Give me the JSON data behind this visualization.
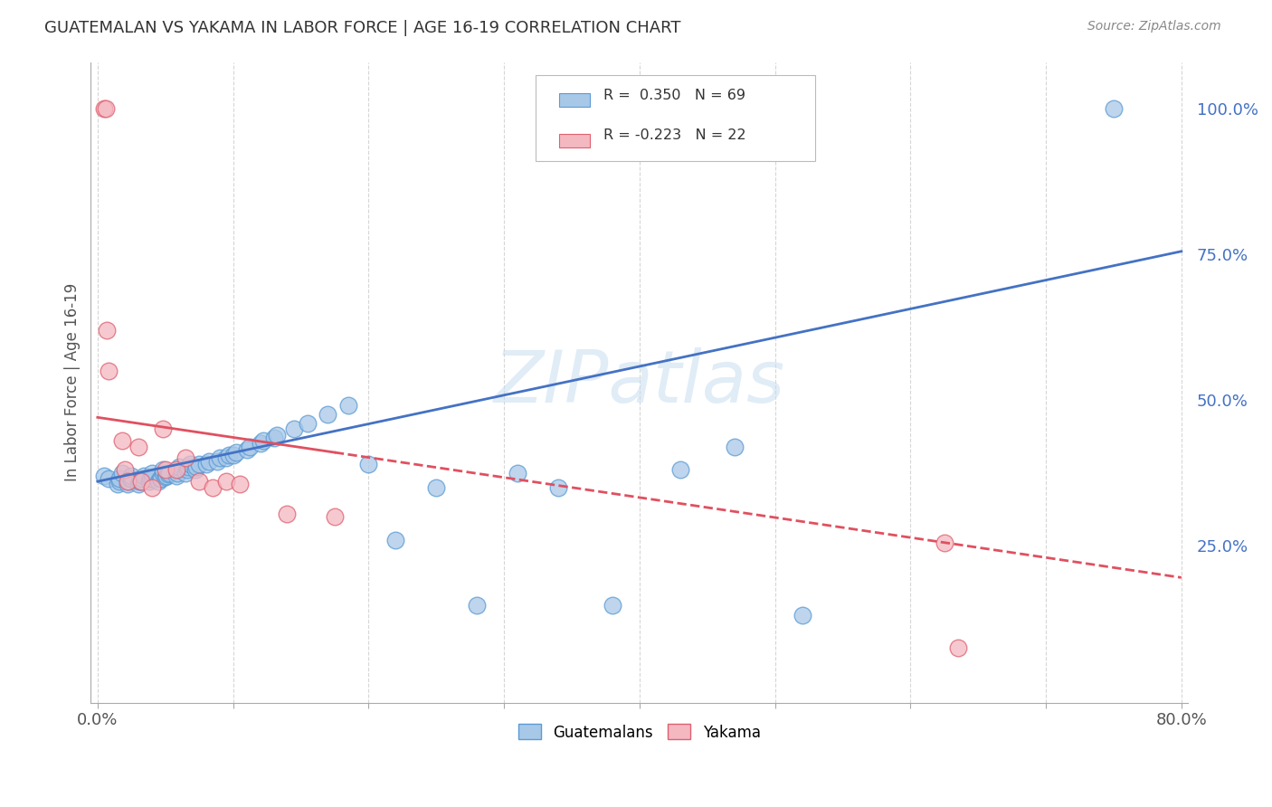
{
  "title": "GUATEMALAN VS YAKAMA IN LABOR FORCE | AGE 16-19 CORRELATION CHART",
  "source": "Source: ZipAtlas.com",
  "ylabel": "In Labor Force | Age 16-19",
  "xlim": [
    -0.005,
    0.805
  ],
  "ylim": [
    -0.02,
    1.08
  ],
  "x_ticks": [
    0.0,
    0.1,
    0.2,
    0.3,
    0.4,
    0.5,
    0.6,
    0.7,
    0.8
  ],
  "x_tick_labels": [
    "0.0%",
    "",
    "",
    "",
    "",
    "",
    "",
    "",
    "80.0%"
  ],
  "y_ticks_right": [
    0.25,
    0.5,
    0.75,
    1.0
  ],
  "y_tick_labels_right": [
    "25.0%",
    "50.0%",
    "75.0%",
    "100.0%"
  ],
  "R_guatemalan": 0.35,
  "N_guatemalan": 69,
  "R_yakama": -0.223,
  "N_yakama": 22,
  "guatemalan_color": "#a8c8e8",
  "guatemalan_edge_color": "#5b9bd5",
  "yakama_color": "#f4b8c1",
  "yakama_edge_color": "#e06070",
  "guatemalan_line_color": "#4472c4",
  "yakama_line_color": "#e05060",
  "watermark": "ZIPatlas",
  "guatemalan_x": [
    0.005,
    0.008,
    0.015,
    0.016,
    0.016,
    0.018,
    0.022,
    0.023,
    0.024,
    0.025,
    0.025,
    0.03,
    0.031,
    0.032,
    0.033,
    0.034,
    0.038,
    0.039,
    0.04,
    0.04,
    0.045,
    0.046,
    0.047,
    0.048,
    0.048,
    0.05,
    0.051,
    0.052,
    0.053,
    0.058,
    0.059,
    0.06,
    0.06,
    0.065,
    0.066,
    0.067,
    0.068,
    0.072,
    0.073,
    0.075,
    0.08,
    0.082,
    0.088,
    0.09,
    0.095,
    0.097,
    0.1,
    0.102,
    0.11,
    0.112,
    0.12,
    0.122,
    0.13,
    0.132,
    0.145,
    0.155,
    0.17,
    0.185,
    0.2,
    0.22,
    0.25,
    0.28,
    0.31,
    0.34,
    0.38,
    0.43,
    0.47,
    0.52,
    0.75
  ],
  "guatemalan_y": [
    0.37,
    0.365,
    0.355,
    0.36,
    0.365,
    0.375,
    0.355,
    0.36,
    0.365,
    0.365,
    0.37,
    0.355,
    0.36,
    0.36,
    0.365,
    0.37,
    0.36,
    0.365,
    0.365,
    0.375,
    0.36,
    0.365,
    0.365,
    0.375,
    0.38,
    0.368,
    0.37,
    0.372,
    0.375,
    0.37,
    0.375,
    0.38,
    0.385,
    0.375,
    0.38,
    0.385,
    0.39,
    0.38,
    0.385,
    0.39,
    0.39,
    0.395,
    0.395,
    0.4,
    0.4,
    0.405,
    0.405,
    0.41,
    0.415,
    0.42,
    0.425,
    0.43,
    0.435,
    0.44,
    0.45,
    0.46,
    0.475,
    0.49,
    0.39,
    0.26,
    0.35,
    0.148,
    0.375,
    0.35,
    0.148,
    0.38,
    0.42,
    0.13,
    1.0
  ],
  "yakama_x": [
    0.005,
    0.006,
    0.007,
    0.008,
    0.018,
    0.02,
    0.022,
    0.03,
    0.032,
    0.04,
    0.048,
    0.05,
    0.058,
    0.065,
    0.075,
    0.085,
    0.095,
    0.105,
    0.14,
    0.175,
    0.625,
    0.635
  ],
  "yakama_y": [
    1.0,
    1.0,
    0.62,
    0.55,
    0.43,
    0.38,
    0.36,
    0.42,
    0.36,
    0.35,
    0.45,
    0.38,
    0.38,
    0.4,
    0.36,
    0.35,
    0.36,
    0.355,
    0.305,
    0.3,
    0.255,
    0.075
  ],
  "line_g_x0": 0.0,
  "line_g_y0": 0.36,
  "line_g_x1": 0.8,
  "line_g_y1": 0.755,
  "line_y_x0": 0.0,
  "line_y_y0": 0.47,
  "line_y_x1": 0.8,
  "line_y_y1": 0.195,
  "line_y_solid_end": 0.175
}
